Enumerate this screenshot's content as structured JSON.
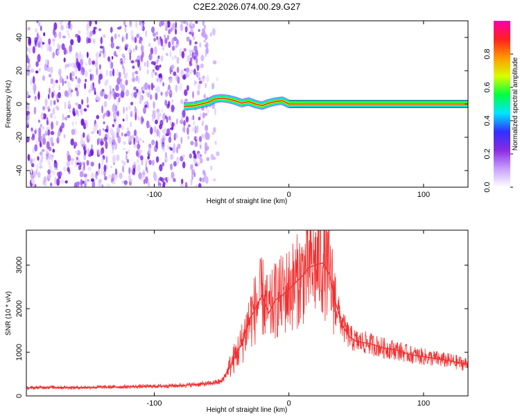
{
  "figure_title": "C2E2.2026.074.00.29.G27",
  "chart_data": [
    {
      "type": "heatmap",
      "title": "C2E2.2026.074.00.29.G27",
      "xlabel": "Height of straight line (km)",
      "ylabel": "Frequency (Hz)",
      "xlim": [
        -195,
        133
      ],
      "ylim": [
        -50,
        50
      ],
      "xticks": [
        -100,
        0,
        100
      ],
      "xtick_labels": [
        "-100",
        "0",
        "100"
      ],
      "yticks": [
        -40,
        -20,
        0,
        20,
        40
      ],
      "ytick_labels": [
        "-40",
        "-20",
        "0",
        "20",
        "40"
      ],
      "noise_region_x": [
        -195,
        -60
      ],
      "signal_trace": {
        "x": [
          -78,
          -70,
          -60,
          -55,
          -50,
          -45,
          -40,
          -35,
          -30,
          -25,
          -20,
          -15,
          -10,
          -5,
          0,
          10,
          20,
          40,
          60,
          80,
          100,
          133
        ],
        "y": [
          -1.5,
          -1,
          1,
          3,
          3.5,
          3,
          2,
          0.5,
          1.5,
          0,
          -1,
          0.5,
          1.5,
          2,
          0,
          0,
          0,
          0,
          0,
          0,
          0,
          0
        ]
      },
      "colorbar": {
        "label": "Normalized spectral amplitude",
        "range": [
          0,
          1
        ],
        "ticks": [
          0.0,
          0.2,
          0.4,
          0.6,
          0.8
        ],
        "tick_labels": [
          "0.0",
          "0.2",
          "0.4",
          "0.6",
          "0.8"
        ],
        "colors": [
          "#ffffff",
          "#c8a0ff",
          "#8a2be2",
          "#3030ff",
          "#00e5ff",
          "#00ff40",
          "#d8ff00",
          "#ff9900",
          "#ff2020",
          "#ff00aa"
        ]
      },
      "grid": false
    },
    {
      "type": "line",
      "xlabel": "Height of straight line (km)",
      "ylabel": "SNR (10 * v/v)",
      "xlim": [
        -195,
        133
      ],
      "ylim": [
        0,
        3800
      ],
      "xticks": [
        -100,
        0,
        100
      ],
      "xtick_labels": [
        "-100",
        "0",
        "100"
      ],
      "yticks": [
        0,
        1000,
        2000,
        3000
      ],
      "ytick_labels": [
        "0",
        "1000",
        "2000",
        "3000"
      ],
      "line_color": "#f03030",
      "grid": false,
      "series": [
        {
          "x": [
            -195,
            -180,
            -160,
            -140,
            -120,
            -100,
            -80,
            -70,
            -60,
            -50,
            -45,
            -40,
            -35,
            -30,
            -25,
            -20,
            -15,
            -10,
            -5,
            0,
            5,
            10,
            15,
            20,
            25,
            30,
            35,
            40,
            45,
            50,
            60,
            70,
            80,
            90,
            100,
            110,
            120,
            133
          ],
          "values": [
            180,
            200,
            190,
            200,
            210,
            220,
            240,
            260,
            280,
            330,
            600,
            900,
            1200,
            1700,
            2000,
            2300,
            1900,
            2200,
            2300,
            2450,
            2600,
            2750,
            2950,
            3000,
            3050,
            2800,
            2100,
            1600,
            1350,
            1250,
            1200,
            1100,
            1050,
            950,
            900,
            850,
            800,
            720
          ]
        }
      ]
    }
  ]
}
